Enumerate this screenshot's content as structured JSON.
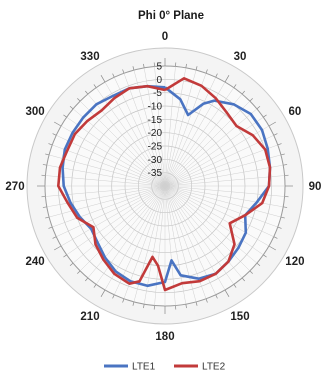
{
  "chart_data": {
    "type": "line",
    "subtype": "polar",
    "title": "Phi 0° Plane",
    "angle_ticks": [
      "0",
      "30",
      "60",
      "90",
      "120",
      "150",
      "180",
      "210",
      "240",
      "270",
      "300",
      "330"
    ],
    "radial_ticks": [
      "5",
      "0",
      "-5",
      "-10",
      "-15",
      "-20",
      "-25",
      "-30",
      "-35"
    ],
    "rlim": [
      -40,
      5
    ],
    "theta_direction": "clockwise",
    "theta_zero": "top",
    "grid": true,
    "legend_position": "bottom",
    "series": [
      {
        "name": "LTE1",
        "color": "#4a74c2",
        "theta": [
          0,
          10,
          18,
          25,
          30,
          40,
          50,
          60,
          70,
          80,
          90,
          100,
          110,
          120,
          130,
          140,
          150,
          160,
          170,
          175,
          180,
          190,
          200,
          210,
          220,
          230,
          240,
          250,
          260,
          270,
          280,
          290,
          300,
          310,
          320,
          330,
          340,
          350
        ],
        "values": [
          -3,
          -7,
          -12,
          -6,
          -3,
          0,
          2,
          2,
          1,
          0,
          -1,
          -5,
          -8,
          -5,
          -4,
          -3,
          -2,
          -3,
          -6,
          -12,
          -4,
          -2,
          -2,
          -3,
          -5,
          -7,
          -8,
          -6,
          -4,
          -2,
          -1,
          0,
          0,
          0,
          0,
          -1,
          -1,
          -2
        ]
      },
      {
        "name": "LTE2",
        "color": "#c23a3a",
        "theta": [
          0,
          10,
          20,
          30,
          40,
          50,
          60,
          70,
          80,
          90,
          100,
          110,
          120,
          130,
          140,
          150,
          160,
          170,
          180,
          185,
          190,
          195,
          200,
          210,
          220,
          230,
          240,
          250,
          260,
          270,
          280,
          290,
          300,
          310,
          320,
          330,
          340,
          350
        ],
        "values": [
          -4,
          1,
          0,
          -2,
          -4,
          -5,
          -2,
          0,
          0,
          -1,
          -3,
          -8,
          -12,
          -6,
          -3,
          -2,
          -2,
          -3,
          -1,
          -10,
          -13,
          -3,
          -1,
          -2,
          -4,
          -6,
          -9,
          -5,
          -3,
          0,
          0,
          -1,
          -1,
          -2,
          -3,
          -2,
          -1,
          -2
        ]
      }
    ]
  }
}
